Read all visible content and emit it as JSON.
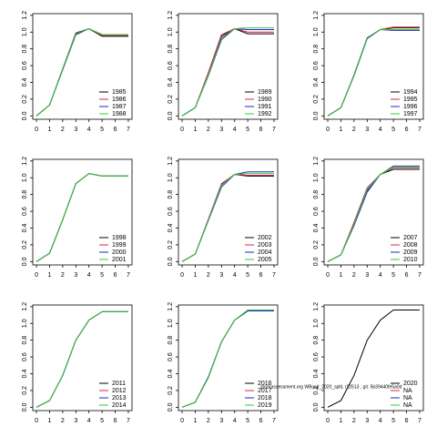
{
  "chart_data": [
    {
      "type": "line",
      "x": [
        0,
        1,
        2,
        3,
        4,
        5,
        6,
        7
      ],
      "xlim": [
        -0.28,
        7.28
      ],
      "xticks": [
        0,
        1,
        2,
        3,
        4,
        5,
        6,
        7
      ],
      "ylim": [
        -0.04,
        1.22
      ],
      "yticks": [
        {
          "value": 0,
          "label": "0.0"
        },
        0.2,
        0.4,
        0.6,
        0.8,
        {
          "value": 1,
          "label": "1.0"
        },
        1.2
      ],
      "legend": "bottomright",
      "series": [
        {
          "name": "1985",
          "color": "#000000",
          "values": [
            0,
            0.13,
            0.55,
            0.97,
            1.04,
            0.95,
            0.95,
            0.95
          ]
        },
        {
          "name": "1986",
          "color": "#dd2255",
          "values": [
            0,
            0.13,
            0.56,
            0.98,
            1.04,
            0.96,
            0.96,
            0.96
          ]
        },
        {
          "name": "1987",
          "color": "#2222cc",
          "values": [
            0,
            0.13,
            0.56,
            0.99,
            1.04,
            0.97,
            0.97,
            0.97
          ]
        },
        {
          "name": "1988",
          "color": "#33cc33",
          "values": [
            0,
            0.13,
            0.55,
            0.98,
            1.04,
            0.97,
            0.97,
            0.97
          ]
        }
      ]
    },
    {
      "type": "line",
      "x": [
        0,
        1,
        2,
        3,
        4,
        5,
        6,
        7
      ],
      "xlim": [
        -0.28,
        7.28
      ],
      "xticks": [
        0,
        1,
        2,
        3,
        4,
        5,
        6,
        7
      ],
      "ylim": [
        -0.04,
        1.22
      ],
      "yticks": [
        {
          "value": 0,
          "label": "0.0"
        },
        0.2,
        0.4,
        0.6,
        0.8,
        {
          "value": 1,
          "label": "1.0"
        },
        1.2
      ],
      "legend": "bottomright",
      "series": [
        {
          "name": "1989",
          "color": "#000000",
          "values": [
            0,
            0.1,
            0.5,
            0.95,
            1.04,
            0.98,
            0.98,
            0.98
          ]
        },
        {
          "name": "1990",
          "color": "#dd2255",
          "values": [
            0,
            0.1,
            0.52,
            0.97,
            1.04,
            1.0,
            1.0,
            1.0
          ]
        },
        {
          "name": "1991",
          "color": "#2222cc",
          "values": [
            0,
            0.1,
            0.48,
            0.91,
            1.04,
            1.03,
            1.03,
            1.03
          ]
        },
        {
          "name": "1992",
          "color": "#33cc33",
          "values": [
            0,
            0.1,
            0.49,
            0.93,
            1.04,
            1.05,
            1.05,
            1.05
          ]
        }
      ]
    },
    {
      "type": "line",
      "x": [
        0,
        1,
        2,
        3,
        4,
        5,
        6,
        7
      ],
      "xlim": [
        -0.28,
        7.28
      ],
      "xticks": [
        0,
        1,
        2,
        3,
        4,
        5,
        6,
        7
      ],
      "ylim": [
        -0.04,
        1.22
      ],
      "yticks": [
        {
          "value": 0,
          "label": "0.0"
        },
        0.2,
        0.4,
        0.6,
        0.8,
        {
          "value": 1,
          "label": "1.0"
        },
        1.2
      ],
      "legend": "bottomright",
      "series": [
        {
          "name": "1994",
          "color": "#000000",
          "values": [
            0,
            0.1,
            0.48,
            0.92,
            1.03,
            1.05,
            1.05,
            1.05
          ]
        },
        {
          "name": "1995",
          "color": "#dd2255",
          "values": [
            0,
            0.1,
            0.48,
            0.93,
            1.03,
            1.06,
            1.06,
            1.06
          ]
        },
        {
          "name": "1996",
          "color": "#2222cc",
          "values": [
            0,
            0.1,
            0.49,
            0.93,
            1.03,
            1.02,
            1.02,
            1.02
          ]
        },
        {
          "name": "1997",
          "color": "#33cc33",
          "values": [
            0,
            0.1,
            0.48,
            0.92,
            1.03,
            1.03,
            1.03,
            1.03
          ]
        }
      ]
    },
    {
      "type": "line",
      "x": [
        0,
        1,
        2,
        3,
        4,
        5,
        6,
        7
      ],
      "xlim": [
        -0.28,
        7.28
      ],
      "xticks": [
        0,
        1,
        2,
        3,
        4,
        5,
        6,
        7
      ],
      "ylim": [
        -0.04,
        1.22
      ],
      "yticks": [
        {
          "value": 0,
          "label": "0.0"
        },
        0.2,
        0.4,
        0.6,
        0.8,
        {
          "value": 1,
          "label": "1.0"
        },
        1.2
      ],
      "legend": "bottomright",
      "series": [
        {
          "name": "1998",
          "color": "#000000",
          "values": [
            0,
            0.1,
            0.5,
            0.93,
            1.05,
            1.02,
            1.02,
            1.02
          ]
        },
        {
          "name": "1999",
          "color": "#dd2255",
          "values": [
            0,
            0.1,
            0.5,
            0.93,
            1.05,
            1.02,
            1.02,
            1.02
          ]
        },
        {
          "name": "2000",
          "color": "#2222cc",
          "values": [
            0,
            0.1,
            0.5,
            0.93,
            1.05,
            1.02,
            1.02,
            1.02
          ]
        },
        {
          "name": "2001",
          "color": "#33cc33",
          "values": [
            0,
            0.1,
            0.5,
            0.93,
            1.05,
            1.02,
            1.02,
            1.02
          ]
        }
      ]
    },
    {
      "type": "line",
      "x": [
        0,
        1,
        2,
        3,
        4,
        5,
        6,
        7
      ],
      "xlim": [
        -0.28,
        7.28
      ],
      "xticks": [
        0,
        1,
        2,
        3,
        4,
        5,
        6,
        7
      ],
      "ylim": [
        -0.04,
        1.22
      ],
      "yticks": [
        {
          "value": 0,
          "label": "0.0"
        },
        0.2,
        0.4,
        0.6,
        0.8,
        {
          "value": 1,
          "label": "1.0"
        },
        1.2
      ],
      "legend": "bottomright",
      "series": [
        {
          "name": "2002",
          "color": "#000000",
          "values": [
            0,
            0.09,
            0.5,
            0.92,
            1.04,
            1.02,
            1.02,
            1.02
          ]
        },
        {
          "name": "2003",
          "color": "#dd2255",
          "values": [
            0,
            0.09,
            0.51,
            0.93,
            1.04,
            1.03,
            1.03,
            1.03
          ]
        },
        {
          "name": "2004",
          "color": "#2222cc",
          "values": [
            0,
            0.09,
            0.49,
            0.89,
            1.04,
            1.07,
            1.07,
            1.07
          ]
        },
        {
          "name": "2005",
          "color": "#33cc33",
          "values": [
            0,
            0.09,
            0.5,
            0.91,
            1.04,
            1.05,
            1.05,
            1.05
          ]
        }
      ]
    },
    {
      "type": "line",
      "x": [
        0,
        1,
        2,
        3,
        4,
        5,
        6,
        7
      ],
      "xlim": [
        -0.28,
        7.28
      ],
      "xticks": [
        0,
        1,
        2,
        3,
        4,
        5,
        6,
        7
      ],
      "ylim": [
        -0.04,
        1.22
      ],
      "yticks": [
        {
          "value": 0,
          "label": "0.0"
        },
        0.2,
        0.4,
        0.6,
        0.8,
        {
          "value": 1,
          "label": "1.0"
        },
        1.2
      ],
      "legend": "bottomright",
      "series": [
        {
          "name": "2007",
          "color": "#000000",
          "values": [
            0,
            0.08,
            0.45,
            0.85,
            1.04,
            1.1,
            1.1,
            1.1
          ]
        },
        {
          "name": "2008",
          "color": "#dd2255",
          "values": [
            0,
            0.08,
            0.47,
            0.88,
            1.04,
            1.12,
            1.12,
            1.12
          ]
        },
        {
          "name": "2009",
          "color": "#2222cc",
          "values": [
            0,
            0.08,
            0.43,
            0.83,
            1.04,
            1.14,
            1.14,
            1.14
          ]
        },
        {
          "name": "2010",
          "color": "#33cc33",
          "values": [
            0,
            0.08,
            0.45,
            0.86,
            1.04,
            1.13,
            1.13,
            1.13
          ]
        }
      ]
    },
    {
      "type": "line",
      "x": [
        0,
        1,
        2,
        3,
        4,
        5,
        6,
        7
      ],
      "xlim": [
        -0.28,
        7.28
      ],
      "xticks": [
        0,
        1,
        2,
        3,
        4,
        5,
        6,
        7
      ],
      "ylim": [
        -0.04,
        1.22
      ],
      "yticks": [
        {
          "value": 0,
          "label": "0.0"
        },
        0.2,
        0.4,
        0.6,
        0.8,
        {
          "value": 1,
          "label": "1.0"
        },
        1.2
      ],
      "legend": "bottomright",
      "series": [
        {
          "name": "2011",
          "color": "#000000",
          "values": [
            0,
            0.08,
            0.38,
            0.8,
            1.04,
            1.14,
            1.14,
            1.14
          ]
        },
        {
          "name": "2012",
          "color": "#dd2255",
          "values": [
            0,
            0.08,
            0.38,
            0.8,
            1.04,
            1.14,
            1.14,
            1.14
          ]
        },
        {
          "name": "2013",
          "color": "#2222cc",
          "values": [
            0,
            0.08,
            0.38,
            0.8,
            1.04,
            1.14,
            1.14,
            1.14
          ]
        },
        {
          "name": "2014",
          "color": "#33cc33",
          "values": [
            0,
            0.08,
            0.38,
            0.8,
            1.04,
            1.14,
            1.14,
            1.14
          ]
        }
      ]
    },
    {
      "type": "line",
      "x": [
        0,
        1,
        2,
        3,
        4,
        5,
        6,
        7
      ],
      "xlim": [
        -0.28,
        7.28
      ],
      "xticks": [
        0,
        1,
        2,
        3,
        4,
        5,
        6,
        7
      ],
      "ylim": [
        -0.04,
        1.22
      ],
      "yticks": [
        {
          "value": 0,
          "label": "0.0"
        },
        0.2,
        0.4,
        0.6,
        0.8,
        {
          "value": 1,
          "label": "1.0"
        },
        1.2
      ],
      "legend": "bottomright",
      "series": [
        {
          "name": "2016",
          "color": "#000000",
          "values": [
            0,
            0.06,
            0.36,
            0.78,
            1.04,
            1.15,
            1.15,
            1.15
          ]
        },
        {
          "name": "2017",
          "color": "#dd2255",
          "values": [
            0,
            0.06,
            0.36,
            0.78,
            1.04,
            1.15,
            1.15,
            1.15
          ]
        },
        {
          "name": "2018",
          "color": "#2222cc",
          "values": [
            0,
            0.06,
            0.36,
            0.78,
            1.04,
            1.15,
            1.15,
            1.15
          ]
        },
        {
          "name": "2019",
          "color": "#33cc33",
          "values": [
            0,
            0.06,
            0.35,
            0.78,
            1.04,
            1.16,
            1.16,
            1.16
          ]
        }
      ]
    },
    {
      "type": "line",
      "x": [
        0,
        1,
        2,
        3,
        4,
        5,
        6,
        7
      ],
      "xlim": [
        -0.28,
        7.28
      ],
      "xticks": [
        0,
        1,
        2,
        3,
        4,
        5,
        6,
        7
      ],
      "ylim": [
        -0.04,
        1.22
      ],
      "yticks": [
        {
          "value": 0,
          "label": "0.0"
        },
        0.2,
        0.4,
        0.6,
        0.8,
        {
          "value": 1,
          "label": "1.0"
        },
        1.2
      ],
      "legend": "bottomright",
      "annotation": "stockassessment.org WBcod_2020_split, r12513 , git: 5b39440fe5a0d",
      "series": [
        {
          "name": "2020",
          "color": "#000000",
          "values": [
            0,
            0.08,
            0.38,
            0.8,
            1.04,
            1.16,
            1.16,
            1.16
          ]
        },
        {
          "name": "NA",
          "color": "#dd2255",
          "values": [
            null,
            null,
            null,
            null,
            null,
            null,
            null,
            null
          ]
        },
        {
          "name": "NA",
          "color": "#2222cc",
          "values": [
            null,
            null,
            null,
            null,
            null,
            null,
            null,
            null
          ]
        },
        {
          "name": "NA",
          "color": "#33cc33",
          "values": [
            null,
            null,
            null,
            null,
            null,
            null,
            null,
            null
          ]
        }
      ]
    }
  ]
}
